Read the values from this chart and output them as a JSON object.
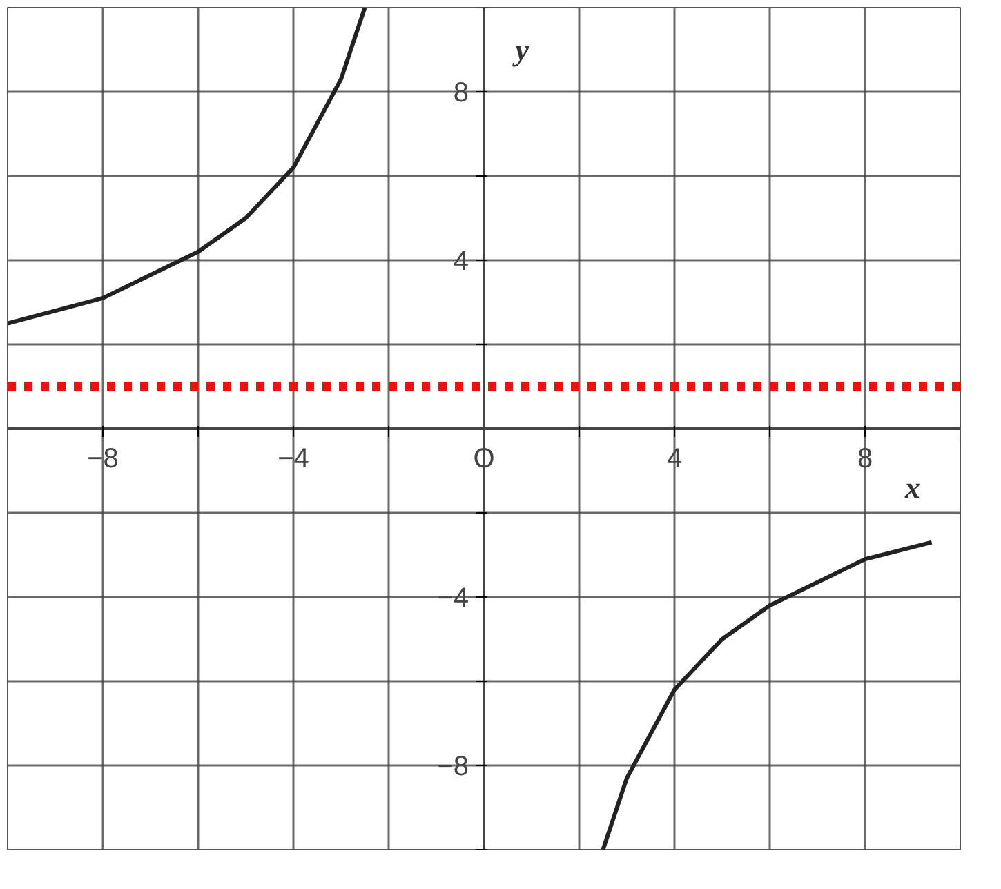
{
  "chart_data": {
    "type": "line",
    "xlabel": "x",
    "ylabel": "y",
    "xlim": [
      -10,
      10
    ],
    "ylim": [
      -10,
      10
    ],
    "xticks": [
      {
        "value": -10,
        "label": null
      },
      -8,
      {
        "value": -6,
        "label": null
      },
      -4,
      {
        "value": -2,
        "label": null
      },
      {
        "value": 0,
        "label": "O"
      },
      {
        "value": 2,
        "label": null
      },
      4,
      {
        "value": 6,
        "label": null
      },
      8,
      {
        "value": 10,
        "label": null
      }
    ],
    "yticks": [
      {
        "value": -10,
        "label": null
      },
      -8,
      {
        "value": -6,
        "label": null
      },
      -4,
      {
        "value": -2,
        "label": null
      },
      {
        "value": 2,
        "label": null
      },
      4,
      {
        "value": 6,
        "label": null
      },
      8,
      {
        "value": 10,
        "label": null
      }
    ],
    "series": [
      {
        "color": "#222222",
        "x": [
          -10,
          -8,
          -6,
          -5,
          -4,
          -3,
          -2.5
        ],
        "values": [
          2.5,
          3.1,
          4.2,
          5,
          6.2,
          8.3,
          10
        ]
      },
      {
        "color": "#222222",
        "x": [
          2.5,
          3,
          4,
          5,
          6,
          8,
          9.4
        ],
        "values": [
          -10,
          -8.3,
          -6.2,
          -5,
          -4.2,
          -3.1,
          -2.7
        ]
      }
    ],
    "ref_lines": [
      {
        "axis": "y",
        "value": 1,
        "color": "#ee1111",
        "line_style": "dashed"
      }
    ],
    "grid": true,
    "marker": "none",
    "line_style": "solid"
  }
}
